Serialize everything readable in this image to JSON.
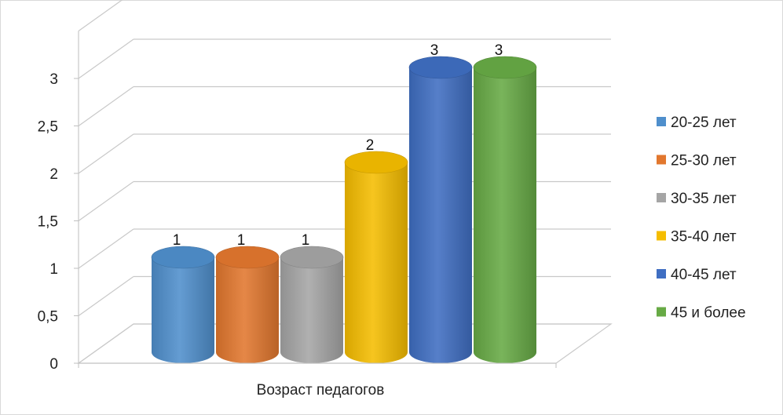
{
  "chart_data": {
    "type": "bar",
    "categories": [
      "Возраст педагогов"
    ],
    "series": [
      {
        "name": "20-25 лет",
        "values": [
          1
        ],
        "color": "#4f8fcc"
      },
      {
        "name": "25-30 лет",
        "values": [
          1
        ],
        "color": "#e2772e"
      },
      {
        "name": "30-35 лет",
        "values": [
          1
        ],
        "color": "#a5a5a5"
      },
      {
        "name": "35-40 лет",
        "values": [
          2
        ],
        "color": "#f5bd00"
      },
      {
        "name": "40-45 лет",
        "values": [
          3
        ],
        "color": "#3f6ec2"
      },
      {
        "name": "45 и более",
        "values": [
          3
        ],
        "color": "#67aa45"
      }
    ],
    "yticks": [
      "0",
      "0,5",
      "1",
      "1,5",
      "2",
      "2,5",
      "3"
    ],
    "ylim": [
      0,
      3.5
    ],
    "grid": true,
    "legend_position": "right",
    "data_labels": [
      "1",
      "1",
      "1",
      "2",
      "3",
      "3"
    ],
    "style": "3d-cylinder"
  }
}
